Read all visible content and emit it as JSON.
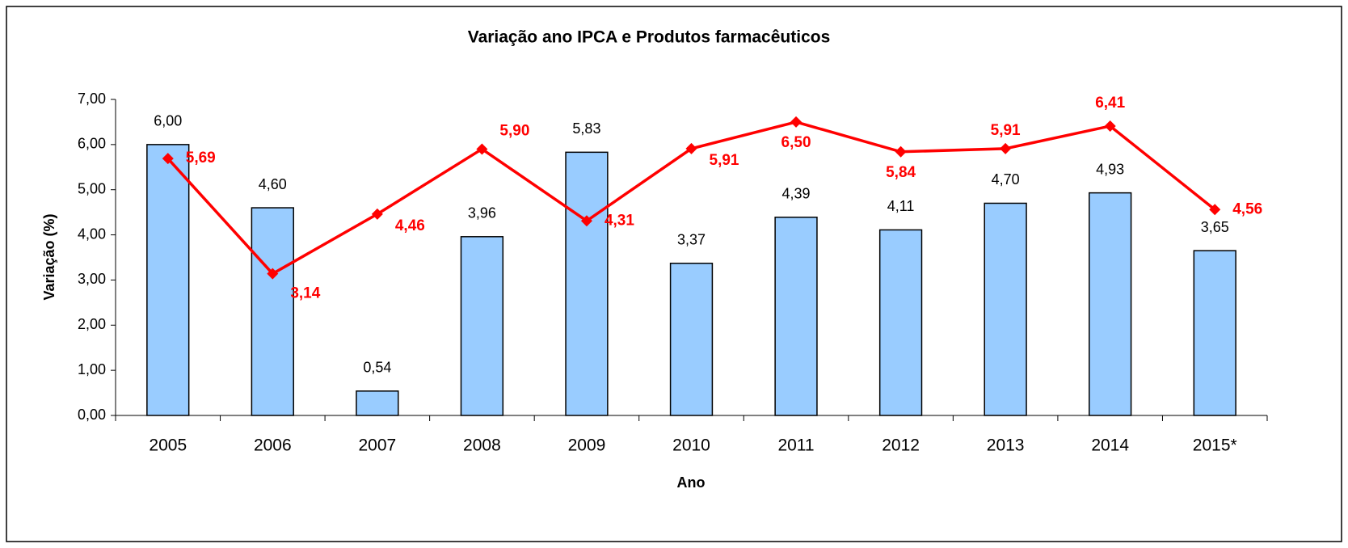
{
  "chart_data": {
    "type": "bar",
    "title": "Variação ano IPCA e  Produtos farmacêuticos",
    "x_label": "Ano",
    "y_label": "Variação (%)",
    "categories": [
      "2005",
      "2006",
      "2007",
      "2008",
      "2009",
      "2010",
      "2011",
      "2012",
      "2013",
      "2014",
      "2015*"
    ],
    "series": [
      {
        "type": "bar",
        "color": "#99ccff",
        "values": [
          6.0,
          4.6,
          0.54,
          3.96,
          5.83,
          3.37,
          4.39,
          4.11,
          4.7,
          4.93,
          3.65
        ],
        "value_labels": [
          "6,00",
          "4,60",
          "0,54",
          "3,96",
          "5,83",
          "3,37",
          "4,39",
          "4,11",
          "4,70",
          "4,93",
          "3,65"
        ]
      },
      {
        "type": "line",
        "color": "#ff0000",
        "values": [
          5.69,
          3.14,
          4.46,
          5.9,
          4.31,
          5.91,
          6.5,
          5.84,
          5.91,
          6.41,
          4.56
        ],
        "value_labels": [
          "5,69",
          "3,14",
          "4,46",
          "5,90",
          "4,31",
          "5,91",
          "6,50",
          "5,84",
          "5,91",
          "6,41",
          "4,56"
        ]
      }
    ],
    "ylim": [
      0,
      7
    ],
    "yticks": [
      {
        "value": 0,
        "label": "0,00"
      },
      {
        "value": 1,
        "label": "1,00"
      },
      {
        "value": 2,
        "label": "2,00"
      },
      {
        "value": 3,
        "label": "3,00"
      },
      {
        "value": 4,
        "label": "4,00"
      },
      {
        "value": 5,
        "label": "5,00"
      },
      {
        "value": 6,
        "label": "6,00"
      },
      {
        "value": 7,
        "label": "7,00"
      }
    ],
    "grid": false
  }
}
